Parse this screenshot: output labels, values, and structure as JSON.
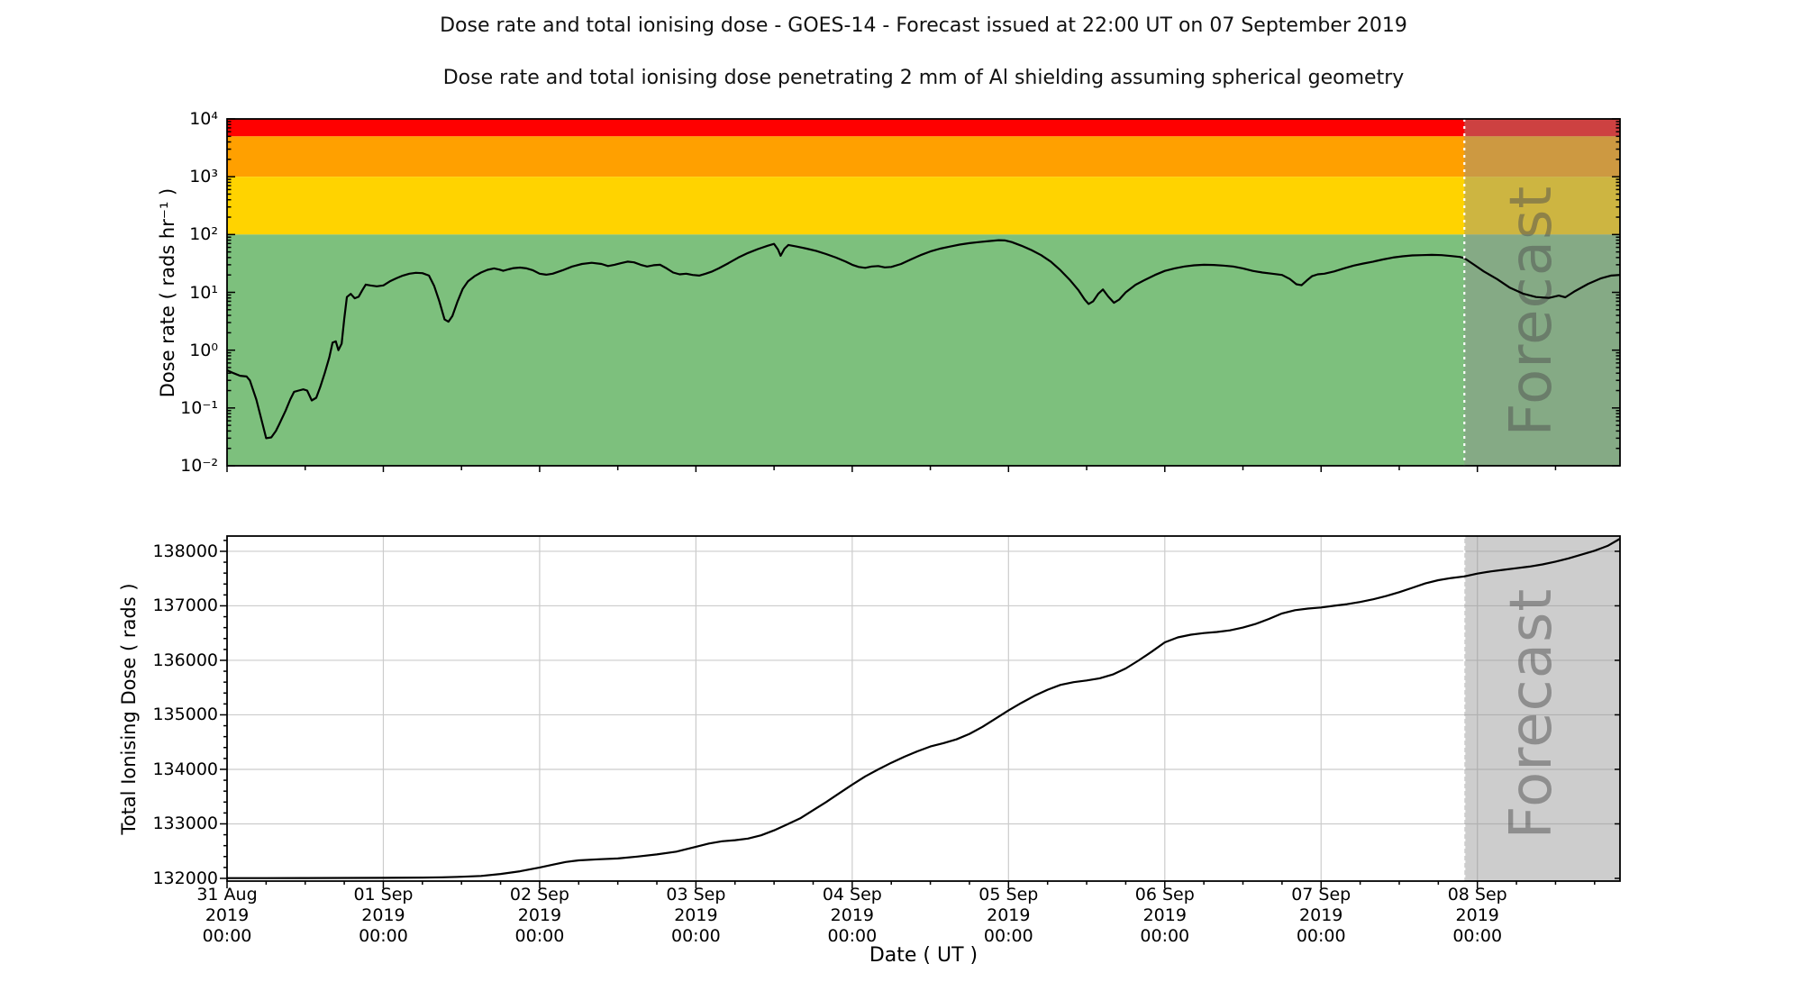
{
  "titles": {
    "main": "Dose rate and total ionising dose - GOES-14 - Forecast issued at 22:00 UT on 07 September 2019",
    "sub": "Dose rate and total ionising dose penetrating 2 mm of Al shielding assuming spherical geometry"
  },
  "forecast": {
    "label": "Forecast",
    "issued": "22:00 UT on 07 September 2019",
    "start_hours": 190,
    "axis_end_hours": 213.9
  },
  "colors": {
    "band_red": "#ff0000",
    "band_orange": "#ffa000",
    "band_yellow": "#ffd300",
    "band_green": "#7dc07d",
    "forecast_overlay": "rgba(145,145,145,0.45)",
    "forecast_text": "rgba(80,80,80,0.5)",
    "grid": "#cccccc",
    "line": "#000000",
    "boundary_dotted": "#ffffff",
    "spine": "#000000"
  },
  "x_axis": {
    "label": "Date ( UT )",
    "tick_hours": [
      0,
      24,
      48,
      72,
      96,
      120,
      144,
      168,
      192
    ],
    "tick_labels": [
      "31 Aug\n2019\n00:00",
      "01 Sep\n2019\n00:00",
      "02 Sep\n2019\n00:00",
      "03 Sep\n2019\n00:00",
      "04 Sep\n2019\n00:00",
      "05 Sep\n2019\n00:00",
      "06 Sep\n2019\n00:00",
      "07 Sep\n2019\n00:00",
      "08 Sep\n2019\n00:00"
    ],
    "start": "31 Aug 2019 00:00 UT",
    "end": "08 Sep 2019 ~22:00 UT"
  },
  "chart_data": [
    {
      "name": "dose_rate",
      "type": "line",
      "ylabel": "Dose rate ( rads hr⁻¹ )",
      "yscale": "log",
      "ylim": [
        0.01,
        10000
      ],
      "y_tick_labels": [
        "10⁴",
        "10³",
        "10²",
        "10¹",
        "10⁰",
        "10⁻¹",
        "10⁻²"
      ],
      "y_tick_values": [
        10000,
        1000,
        100,
        10,
        1,
        0.1,
        0.01
      ],
      "bands": [
        {
          "label": "red",
          "range": [
            5000,
            10000
          ],
          "color": "#ff0000"
        },
        {
          "label": "orange",
          "range": [
            1000,
            5000
          ],
          "color": "#ffa000"
        },
        {
          "label": "yellow",
          "range": [
            100,
            1000
          ],
          "color": "#ffd300"
        },
        {
          "label": "green",
          "range": [
            0.01,
            100
          ],
          "color": "#7dc07d"
        }
      ],
      "points_hours_value": [
        [
          0,
          0.45
        ],
        [
          1,
          0.4
        ],
        [
          2,
          0.36
        ],
        [
          3,
          0.35
        ],
        [
          3.5,
          0.3
        ],
        [
          4.5,
          0.14
        ],
        [
          5.5,
          0.05
        ],
        [
          6,
          0.03
        ],
        [
          6.8,
          0.031
        ],
        [
          7.5,
          0.04
        ],
        [
          8,
          0.052
        ],
        [
          9,
          0.09
        ],
        [
          9.7,
          0.14
        ],
        [
          10.3,
          0.19
        ],
        [
          11,
          0.2
        ],
        [
          11.7,
          0.21
        ],
        [
          12.3,
          0.2
        ],
        [
          13,
          0.135
        ],
        [
          13.7,
          0.15
        ],
        [
          14.3,
          0.23
        ],
        [
          15,
          0.4
        ],
        [
          15.7,
          0.75
        ],
        [
          16.2,
          1.35
        ],
        [
          16.7,
          1.42
        ],
        [
          17.1,
          1.0
        ],
        [
          17.6,
          1.3
        ],
        [
          18,
          3.5
        ],
        [
          18.4,
          8.3
        ],
        [
          19,
          9.4
        ],
        [
          19.6,
          7.9
        ],
        [
          20.2,
          8.4
        ],
        [
          20.8,
          11
        ],
        [
          21.3,
          13.6
        ],
        [
          22,
          13.2
        ],
        [
          23,
          12.7
        ],
        [
          24,
          13.2
        ],
        [
          25,
          15.5
        ],
        [
          26,
          17.5
        ],
        [
          27,
          19.5
        ],
        [
          28,
          21
        ],
        [
          29,
          21.8
        ],
        [
          30,
          21.5
        ],
        [
          31,
          19.5
        ],
        [
          31.8,
          13
        ],
        [
          32.6,
          7
        ],
        [
          33.4,
          3.4
        ],
        [
          34,
          3.1
        ],
        [
          34.6,
          3.9
        ],
        [
          35.4,
          7
        ],
        [
          36.2,
          11.5
        ],
        [
          37,
          15.5
        ],
        [
          38,
          19
        ],
        [
          39,
          22
        ],
        [
          40,
          24.5
        ],
        [
          41,
          26
        ],
        [
          41.8,
          24.8
        ],
        [
          42.4,
          23.6
        ],
        [
          43.2,
          25
        ],
        [
          44,
          26.3
        ],
        [
          45,
          26.8
        ],
        [
          46,
          26
        ],
        [
          47,
          24
        ],
        [
          48,
          21
        ],
        [
          49,
          20.2
        ],
        [
          50,
          21
        ],
        [
          51.5,
          24
        ],
        [
          53,
          28
        ],
        [
          54.5,
          31
        ],
        [
          56,
          32.5
        ],
        [
          57.5,
          31
        ],
        [
          58.5,
          28.5
        ],
        [
          59.5,
          30
        ],
        [
          60.5,
          32
        ],
        [
          61.5,
          34
        ],
        [
          62.5,
          33
        ],
        [
          63.5,
          30
        ],
        [
          64.5,
          28
        ],
        [
          65.5,
          29.5
        ],
        [
          66.5,
          30
        ],
        [
          67.5,
          26
        ],
        [
          68.5,
          22
        ],
        [
          69.5,
          20.5
        ],
        [
          70.5,
          21
        ],
        [
          71.5,
          20
        ],
        [
          72.5,
          19.5
        ],
        [
          73.5,
          21
        ],
        [
          74.5,
          23
        ],
        [
          75.5,
          26
        ],
        [
          77,
          32
        ],
        [
          78.5,
          40
        ],
        [
          80,
          48
        ],
        [
          81.5,
          56
        ],
        [
          83,
          64
        ],
        [
          84,
          69
        ],
        [
          84.6,
          55
        ],
        [
          85,
          43
        ],
        [
          85.6,
          57
        ],
        [
          86.2,
          66
        ],
        [
          87.5,
          62
        ],
        [
          89,
          57
        ],
        [
          90.5,
          52
        ],
        [
          92,
          46
        ],
        [
          93.5,
          40
        ],
        [
          95,
          34
        ],
        [
          96,
          30
        ],
        [
          97,
          27.5
        ],
        [
          98,
          26.5
        ],
        [
          99,
          28
        ],
        [
          100,
          28.5
        ],
        [
          101,
          27
        ],
        [
          102,
          27.5
        ],
        [
          103.5,
          31
        ],
        [
          105,
          37
        ],
        [
          106.5,
          44
        ],
        [
          108,
          51
        ],
        [
          109.5,
          57
        ],
        [
          111,
          62
        ],
        [
          112.5,
          67
        ],
        [
          114,
          71
        ],
        [
          115.5,
          74
        ],
        [
          117,
          77
        ],
        [
          118.5,
          80
        ],
        [
          119.5,
          79
        ],
        [
          120.5,
          74
        ],
        [
          122,
          64
        ],
        [
          123.5,
          54
        ],
        [
          125,
          44
        ],
        [
          126.5,
          34
        ],
        [
          128,
          24
        ],
        [
          129.5,
          16
        ],
        [
          130.7,
          11
        ],
        [
          131.7,
          7.5
        ],
        [
          132.3,
          6.3
        ],
        [
          133,
          7.0
        ],
        [
          133.8,
          9.5
        ],
        [
          134.5,
          11.2
        ],
        [
          135.3,
          8.5
        ],
        [
          136.2,
          6.6
        ],
        [
          137,
          7.5
        ],
        [
          138,
          10
        ],
        [
          139.5,
          13.5
        ],
        [
          141,
          16.5
        ],
        [
          142.5,
          20
        ],
        [
          144,
          23.5
        ],
        [
          145.5,
          26
        ],
        [
          147,
          28
        ],
        [
          148.5,
          29.3
        ],
        [
          150,
          30
        ],
        [
          151.5,
          29.8
        ],
        [
          153,
          29
        ],
        [
          154.5,
          28
        ],
        [
          156,
          26
        ],
        [
          157.5,
          23.5
        ],
        [
          159,
          22
        ],
        [
          160.5,
          21
        ],
        [
          162,
          20
        ],
        [
          163.2,
          17
        ],
        [
          164.2,
          13.8
        ],
        [
          165,
          13.3
        ],
        [
          165.8,
          16
        ],
        [
          166.6,
          19
        ],
        [
          167.5,
          20.5
        ],
        [
          168.5,
          21
        ],
        [
          170,
          23
        ],
        [
          171.5,
          26
        ],
        [
          173,
          29
        ],
        [
          174.5,
          31.5
        ],
        [
          176,
          34
        ],
        [
          177.5,
          37
        ],
        [
          179,
          40
        ],
        [
          180.5,
          42
        ],
        [
          182,
          43.5
        ],
        [
          183.5,
          44
        ],
        [
          185,
          44.5
        ],
        [
          186.5,
          44
        ],
        [
          188,
          42.5
        ],
        [
          189.3,
          41
        ],
        [
          190,
          39
        ],
        [
          191.5,
          30
        ],
        [
          193,
          23
        ],
        [
          195,
          17
        ],
        [
          197,
          12
        ],
        [
          199,
          9.5
        ],
        [
          201,
          8.3
        ],
        [
          203,
          8.0
        ],
        [
          204.5,
          8.8
        ],
        [
          205.5,
          8.2
        ],
        [
          207,
          10.5
        ],
        [
          209,
          14
        ],
        [
          211,
          17.5
        ],
        [
          212.5,
          19.5
        ],
        [
          213.9,
          20
        ]
      ]
    },
    {
      "name": "total_ionising_dose",
      "type": "line",
      "ylabel": "Total Ionising Dose ( rads )",
      "yscale": "linear",
      "ylim": [
        131950,
        138280
      ],
      "y_tick_values": [
        138000,
        137000,
        136000,
        135000,
        134000,
        133000,
        132000
      ],
      "y_tick_labels": [
        "138000",
        "137000",
        "136000",
        "135000",
        "134000",
        "133000",
        "132000"
      ],
      "grid": true,
      "points_hours_value": [
        [
          0,
          132005
        ],
        [
          6,
          132005
        ],
        [
          12,
          132006
        ],
        [
          18,
          132008
        ],
        [
          24,
          132010
        ],
        [
          30,
          132015
        ],
        [
          33,
          132020
        ],
        [
          36,
          132030
        ],
        [
          39,
          132045
        ],
        [
          42,
          132080
        ],
        [
          45,
          132130
        ],
        [
          48,
          132200
        ],
        [
          50,
          132250
        ],
        [
          52,
          132300
        ],
        [
          54,
          132330
        ],
        [
          57,
          132350
        ],
        [
          60,
          132365
        ],
        [
          63,
          132400
        ],
        [
          66,
          132440
        ],
        [
          69,
          132490
        ],
        [
          72,
          132580
        ],
        [
          74,
          132640
        ],
        [
          76,
          132680
        ],
        [
          78,
          132700
        ],
        [
          80,
          132730
        ],
        [
          82,
          132790
        ],
        [
          84,
          132880
        ],
        [
          86,
          132990
        ],
        [
          88,
          133100
        ],
        [
          90,
          133250
        ],
        [
          92,
          133400
        ],
        [
          94,
          133560
        ],
        [
          96,
          133720
        ],
        [
          98,
          133870
        ],
        [
          100,
          134000
        ],
        [
          102,
          134120
        ],
        [
          104,
          134230
        ],
        [
          106,
          134330
        ],
        [
          108,
          134420
        ],
        [
          110,
          134480
        ],
        [
          112,
          134550
        ],
        [
          114,
          134650
        ],
        [
          116,
          134780
        ],
        [
          118,
          134930
        ],
        [
          120,
          135080
        ],
        [
          122,
          135220
        ],
        [
          124,
          135350
        ],
        [
          126,
          135460
        ],
        [
          128,
          135550
        ],
        [
          130,
          135600
        ],
        [
          132,
          135630
        ],
        [
          134,
          135670
        ],
        [
          136,
          135740
        ],
        [
          138,
          135850
        ],
        [
          140,
          136000
        ],
        [
          142,
          136160
        ],
        [
          144,
          136330
        ],
        [
          146,
          136420
        ],
        [
          148,
          136470
        ],
        [
          150,
          136500
        ],
        [
          152,
          136520
        ],
        [
          154,
          136550
        ],
        [
          156,
          136600
        ],
        [
          158,
          136670
        ],
        [
          160,
          136760
        ],
        [
          162,
          136860
        ],
        [
          164,
          136920
        ],
        [
          166,
          136950
        ],
        [
          168,
          136970
        ],
        [
          170,
          137000
        ],
        [
          172,
          137030
        ],
        [
          174,
          137070
        ],
        [
          176,
          137120
        ],
        [
          178,
          137180
        ],
        [
          180,
          137250
        ],
        [
          182,
          137330
        ],
        [
          184,
          137410
        ],
        [
          186,
          137470
        ],
        [
          188,
          137510
        ],
        [
          190,
          137540
        ],
        [
          192,
          137590
        ],
        [
          194,
          137630
        ],
        [
          196,
          137660
        ],
        [
          198,
          137690
        ],
        [
          200,
          137720
        ],
        [
          202,
          137760
        ],
        [
          204,
          137810
        ],
        [
          206,
          137870
        ],
        [
          208,
          137940
        ],
        [
          210,
          138010
        ],
        [
          212,
          138100
        ],
        [
          213.9,
          138230
        ]
      ]
    }
  ]
}
